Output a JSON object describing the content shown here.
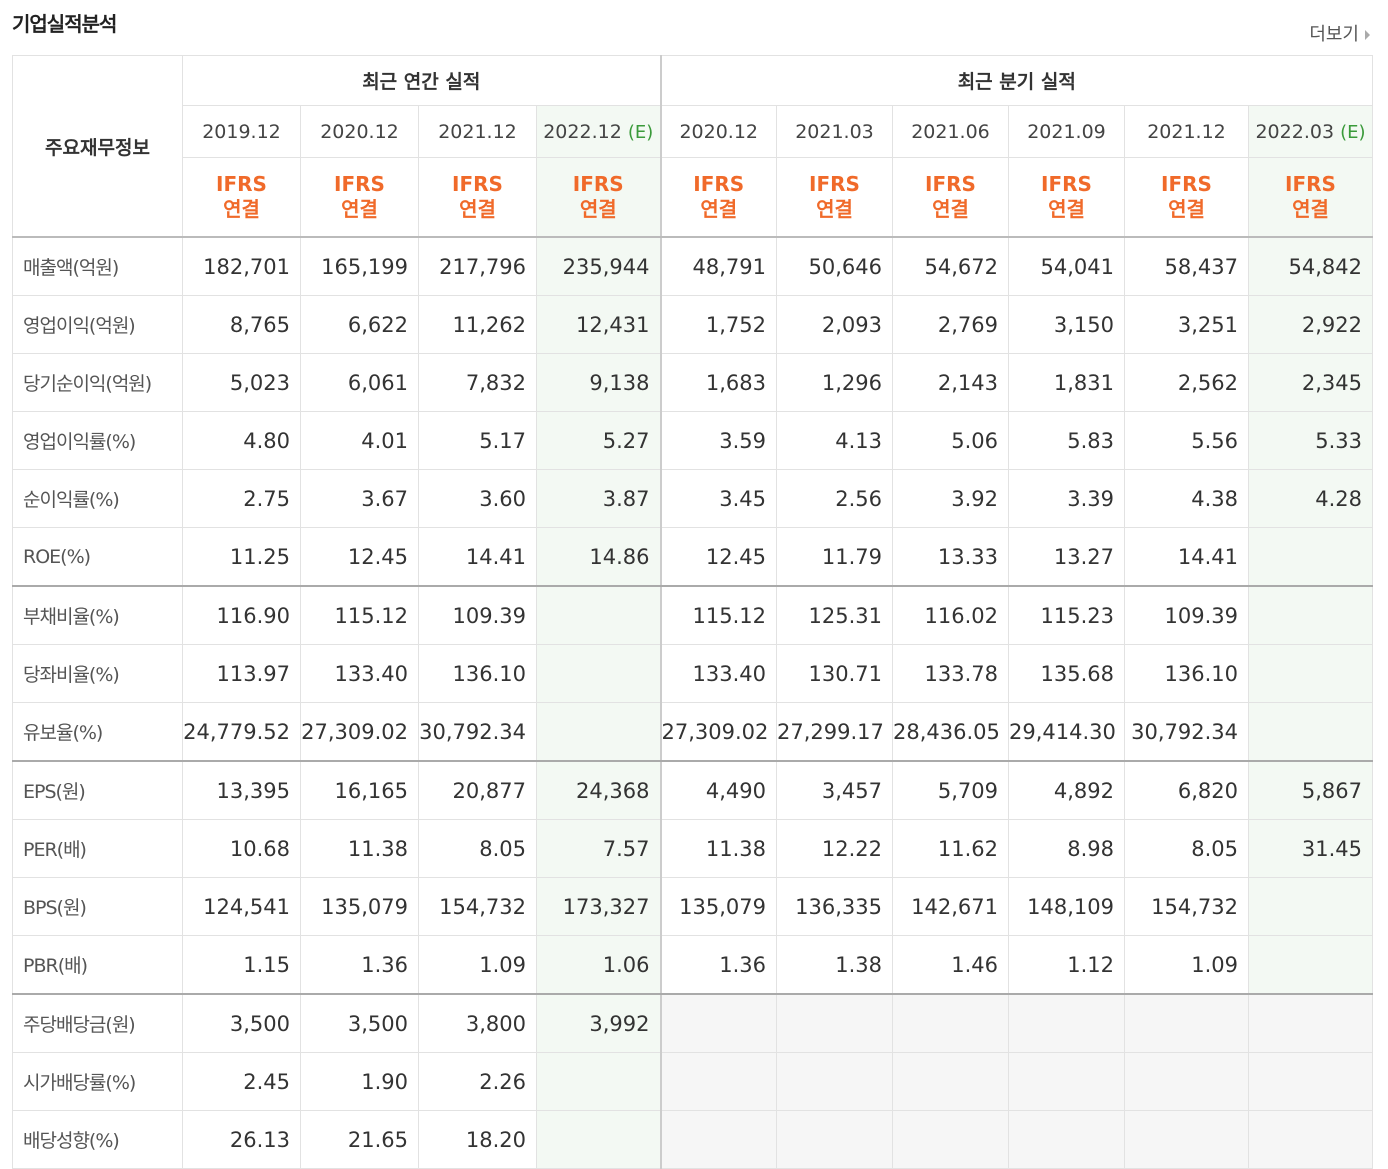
{
  "header": {
    "title": "기업실적분석",
    "more": "더보기"
  },
  "table": {
    "corner": "주요재무정보",
    "groups": [
      {
        "label": "최근 연간 실적",
        "span": 4
      },
      {
        "label": "최근 분기 실적",
        "span": 6
      }
    ],
    "columns": [
      {
        "date": "2019.12",
        "ifrs": "IFRS",
        "consolidation": "연결"
      },
      {
        "date": "2020.12",
        "ifrs": "IFRS",
        "consolidation": "연결"
      },
      {
        "date": "2021.12",
        "ifrs": "IFRS",
        "consolidation": "연결"
      },
      {
        "date": "2022.12",
        "estimate": "(E)",
        "ifrs": "IFRS",
        "consolidation": "연결"
      },
      {
        "date": "2020.12",
        "ifrs": "IFRS",
        "consolidation": "연결"
      },
      {
        "date": "2021.03",
        "ifrs": "IFRS",
        "consolidation": "연결"
      },
      {
        "date": "2021.06",
        "ifrs": "IFRS",
        "consolidation": "연결"
      },
      {
        "date": "2021.09",
        "ifrs": "IFRS",
        "consolidation": "연결"
      },
      {
        "date": "2021.12",
        "ifrs": "IFRS",
        "consolidation": "연결"
      },
      {
        "date": "2022.03",
        "estimate": "(E)",
        "ifrs": "IFRS",
        "consolidation": "연결"
      }
    ],
    "rows": [
      {
        "label": "매출액(억원)",
        "cells": [
          "182,701",
          "165,199",
          "217,796",
          "235,944",
          "48,791",
          "50,646",
          "54,672",
          "54,041",
          "58,437",
          "54,842"
        ]
      },
      {
        "label": "영업이익(억원)",
        "cells": [
          "8,765",
          "6,622",
          "11,262",
          "12,431",
          "1,752",
          "2,093",
          "2,769",
          "3,150",
          "3,251",
          "2,922"
        ]
      },
      {
        "label": "당기순이익(억원)",
        "cells": [
          "5,023",
          "6,061",
          "7,832",
          "9,138",
          "1,683",
          "1,296",
          "2,143",
          "1,831",
          "2,562",
          "2,345"
        ]
      },
      {
        "label": "영업이익률(%)",
        "cells": [
          "4.80",
          "4.01",
          "5.17",
          "5.27",
          "3.59",
          "4.13",
          "5.06",
          "5.83",
          "5.56",
          "5.33"
        ]
      },
      {
        "label": "순이익률(%)",
        "cells": [
          "2.75",
          "3.67",
          "3.60",
          "3.87",
          "3.45",
          "2.56",
          "3.92",
          "3.39",
          "4.38",
          "4.28"
        ]
      },
      {
        "label": "ROE(%)",
        "cells": [
          "11.25",
          "12.45",
          "14.41",
          "14.86",
          "12.45",
          "11.79",
          "13.33",
          "13.27",
          "14.41",
          null
        ]
      },
      {
        "label": "부채비율(%)",
        "cells": [
          "116.90",
          "115.12",
          "109.39",
          null,
          "115.12",
          "125.31",
          "116.02",
          "115.23",
          "109.39",
          null
        ]
      },
      {
        "label": "당좌비율(%)",
        "cells": [
          "113.97",
          "133.40",
          "136.10",
          null,
          "133.40",
          "130.71",
          "133.78",
          "135.68",
          "136.10",
          null
        ]
      },
      {
        "label": "유보율(%)",
        "cells": [
          "24,779.52",
          "27,309.02",
          "30,792.34",
          null,
          "27,309.02",
          "27,299.17",
          "28,436.05",
          "29,414.30",
          "30,792.34",
          null
        ]
      },
      {
        "label": "EPS(원)",
        "cells": [
          "13,395",
          "16,165",
          "20,877",
          "24,368",
          "4,490",
          "3,457",
          "5,709",
          "4,892",
          "6,820",
          "5,867"
        ]
      },
      {
        "label": "PER(배)",
        "cells": [
          "10.68",
          "11.38",
          "8.05",
          "7.57",
          "11.38",
          "12.22",
          "11.62",
          "8.98",
          "8.05",
          "31.45"
        ]
      },
      {
        "label": "BPS(원)",
        "cells": [
          "124,541",
          "135,079",
          "154,732",
          "173,327",
          "135,079",
          "136,335",
          "142,671",
          "148,109",
          "154,732",
          null
        ]
      },
      {
        "label": "PBR(배)",
        "cells": [
          "1.15",
          "1.36",
          "1.09",
          "1.06",
          "1.36",
          "1.38",
          "1.46",
          "1.12",
          "1.09",
          null
        ]
      },
      {
        "label": "주당배당금(원)",
        "cells": [
          "3,500",
          "3,500",
          "3,800",
          "3,992",
          null,
          null,
          null,
          null,
          null,
          null
        ]
      },
      {
        "label": "시가배당률(%)",
        "cells": [
          "2.45",
          "1.90",
          "2.26",
          null,
          null,
          null,
          null,
          null,
          null,
          null
        ]
      },
      {
        "label": "배당성향(%)",
        "cells": [
          "26.13",
          "21.65",
          "18.20",
          null,
          null,
          null,
          null,
          null,
          null,
          null
        ]
      }
    ]
  }
}
